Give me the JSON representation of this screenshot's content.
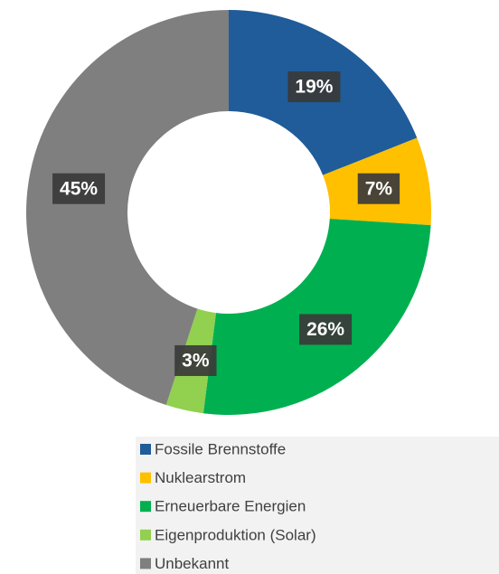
{
  "chart_data": {
    "type": "donut",
    "categories": [
      "Fossile Brennstoffe",
      "Nuklearstrom",
      "Erneuerbare Energien",
      "Eigenproduktion (Solar)",
      "Unbekannt"
    ],
    "values": [
      19,
      7,
      26,
      3,
      45
    ],
    "value_labels": [
      "19%",
      "7%",
      "26%",
      "3%",
      "45%"
    ],
    "colors": [
      "#1f5c99",
      "#ffc000",
      "#00b050",
      "#92d050",
      "#7f7f7f"
    ],
    "legend": "bottom"
  }
}
